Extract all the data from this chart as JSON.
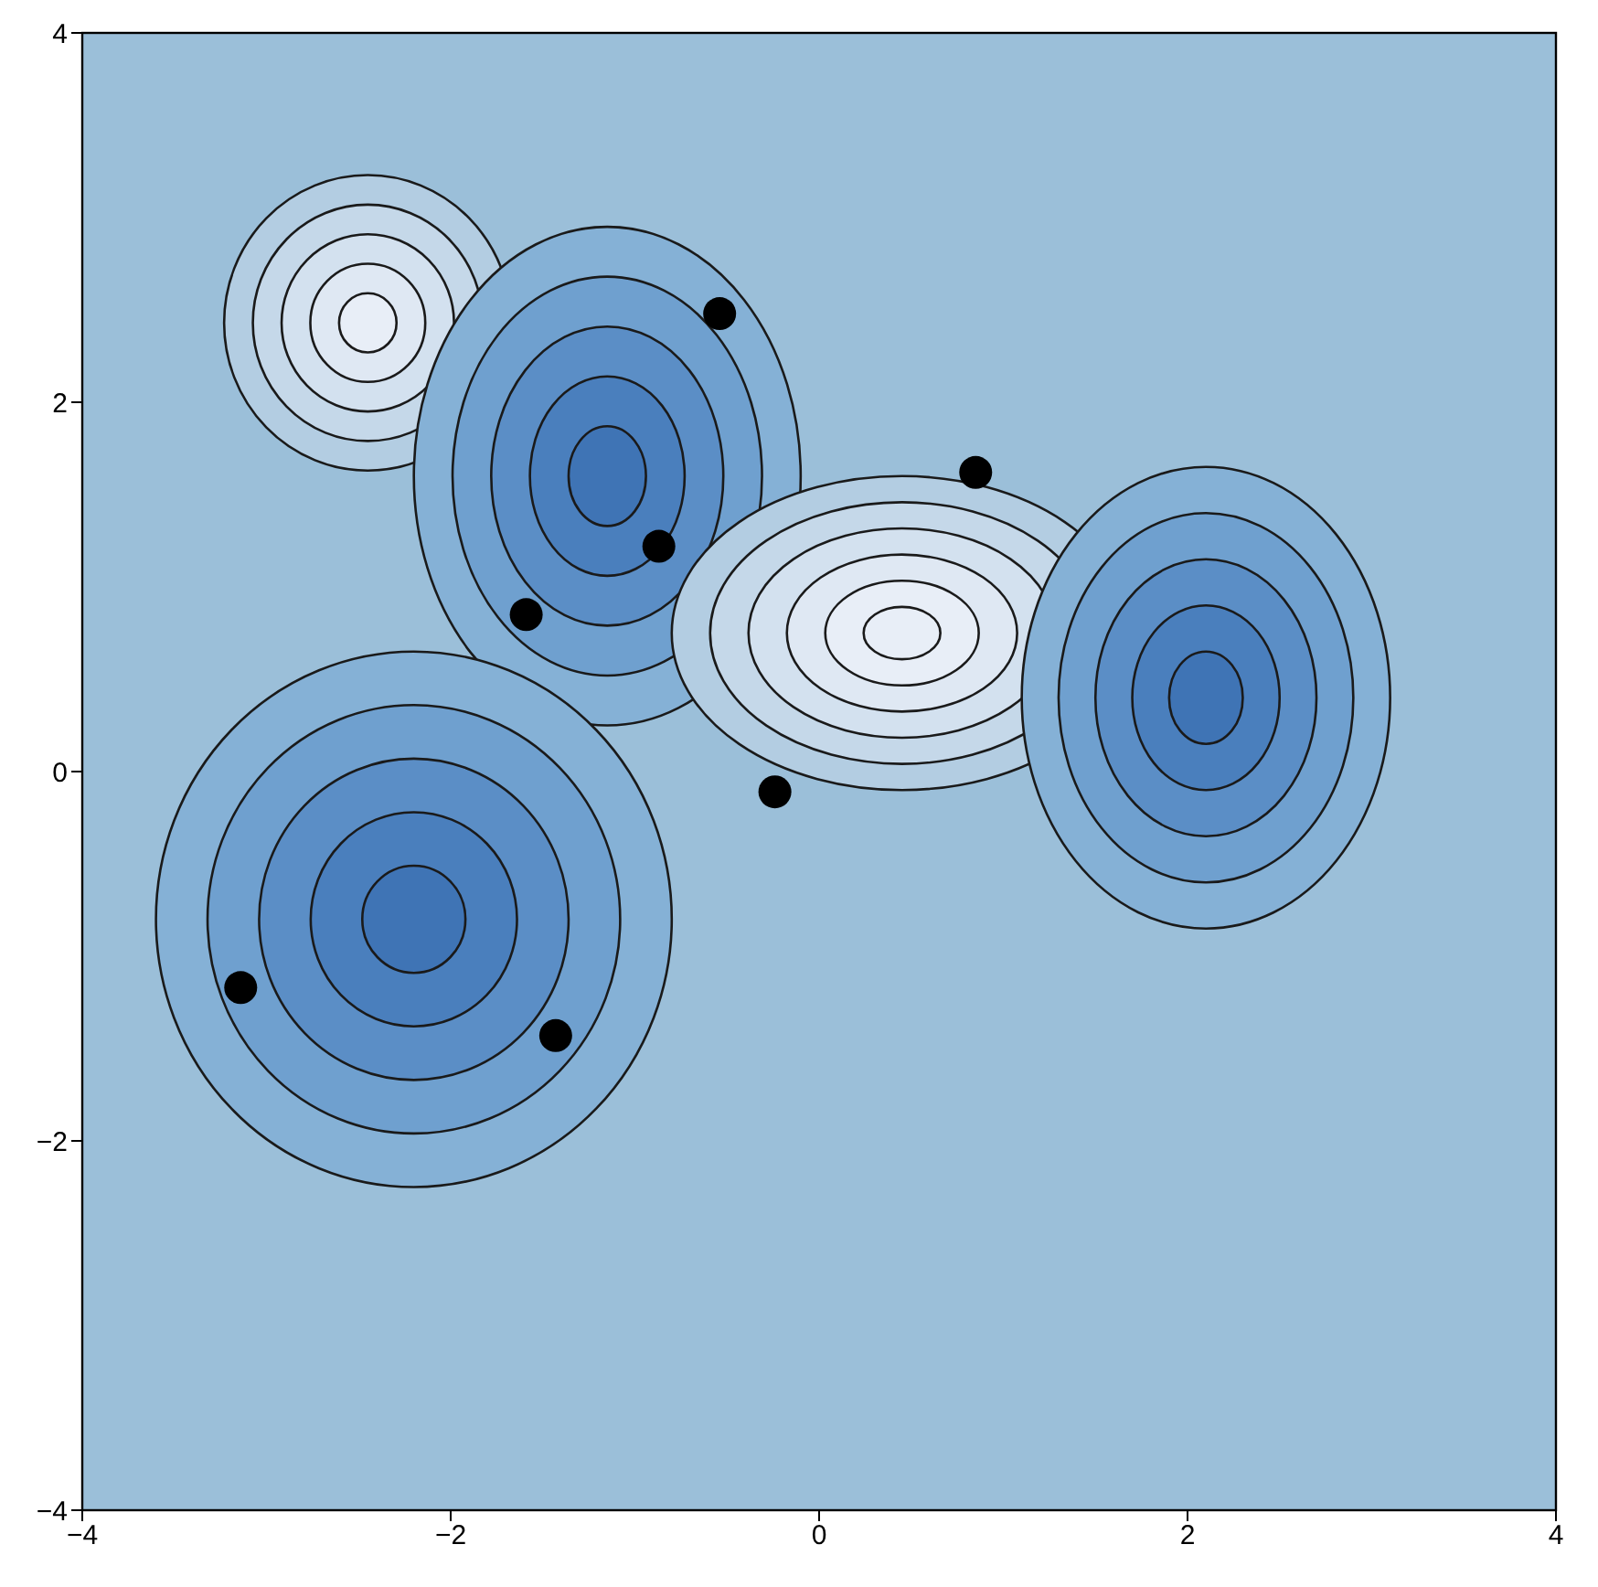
{
  "chart_data": {
    "type": "scatter",
    "xlim": [
      -4,
      4
    ],
    "ylim": [
      -4,
      4
    ],
    "xticks": [
      {
        "value": -4,
        "label": "−4"
      },
      {
        "value": -2,
        "label": "−2"
      },
      0,
      2,
      4
    ],
    "yticks": [
      {
        "value": -4,
        "label": "−4"
      },
      {
        "value": -2,
        "label": "−2"
      },
      0,
      2,
      4
    ],
    "x": [
      -0.54,
      0.85,
      -0.87,
      -1.59,
      -0.24,
      -3.14,
      -1.43
    ],
    "series": [
      {
        "color": "#000000",
        "values": [
          2.48,
          1.62,
          1.22,
          0.85,
          -0.11,
          -1.17,
          -1.43
        ]
      }
    ],
    "marker": "circle",
    "grid": false,
    "legend": false
  }
}
